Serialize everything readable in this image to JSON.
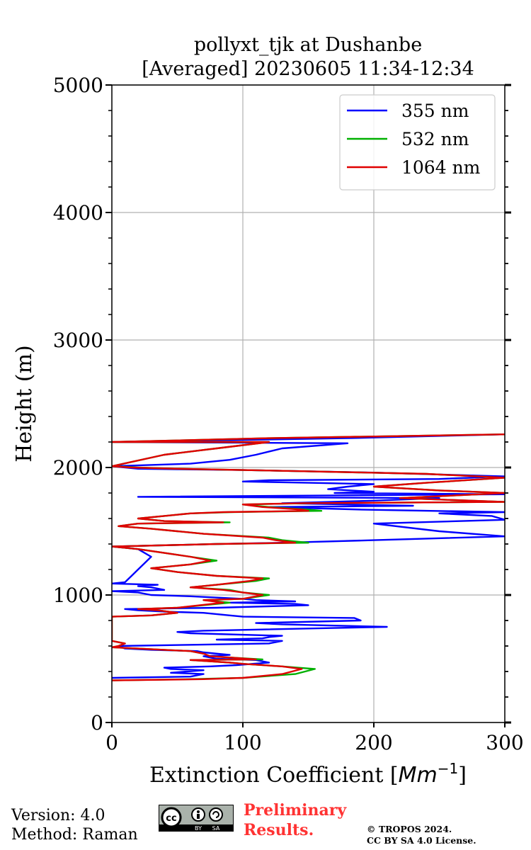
{
  "footer": {
    "version": "Version: 4.0",
    "method": "Method: Raman",
    "preliminary_line1": "Preliminary",
    "preliminary_line2": "Results.",
    "copyright_line1": "© TROPOS 2024.",
    "copyright_line2": "CC BY SA 4.0 License.",
    "license_badge": {
      "cc": "cc",
      "by": "BY",
      "sa": "SA"
    }
  },
  "chart_data": {
    "type": "line",
    "title": [
      "pollyxt_tjk at Dushanbe",
      "[Averaged] 20230605 11:34-12:34"
    ],
    "xlabel": "Extinction Coefficient [",
    "xlabel_unit": "Mm",
    "xlabel_exp": "−1",
    "xlabel_end": "]",
    "ylabel": "Height (m)",
    "xlim": [
      0,
      300
    ],
    "ylim": [
      0,
      5000
    ],
    "xticks": [
      0,
      100,
      200,
      300
    ],
    "xtick_labels": [
      "0",
      "100",
      "200",
      "300"
    ],
    "yticks": [
      0,
      1000,
      2000,
      3000,
      4000,
      5000
    ],
    "ytick_labels": [
      "0",
      "1000",
      "2000",
      "3000",
      "4000",
      "5000"
    ],
    "y_minor_step": 200,
    "grid": true,
    "legend_position": "top-right",
    "series": [
      {
        "name": "355 nm",
        "color": "#0000ff",
        "points": [
          [
            0,
            350
          ],
          [
            60,
            360
          ],
          [
            70,
            380
          ],
          [
            45,
            390
          ],
          [
            70,
            410
          ],
          [
            45,
            420
          ],
          [
            40,
            430
          ],
          [
            75,
            440
          ],
          [
            95,
            450
          ],
          [
            120,
            470
          ],
          [
            110,
            490
          ],
          [
            80,
            500
          ],
          [
            70,
            520
          ],
          [
            90,
            530
          ],
          [
            70,
            550
          ],
          [
            65,
            560
          ],
          [
            30,
            570
          ],
          [
            10,
            580
          ],
          [
            5,
            600
          ],
          [
            65,
            610
          ],
          [
            120,
            620
          ],
          [
            130,
            640
          ],
          [
            80,
            650
          ],
          [
            115,
            660
          ],
          [
            120,
            670
          ],
          [
            130,
            680
          ],
          [
            60,
            700
          ],
          [
            50,
            710
          ],
          [
            70,
            720
          ],
          [
            210,
            750
          ],
          [
            130,
            770
          ],
          [
            110,
            780
          ],
          [
            190,
            800
          ],
          [
            185,
            820
          ],
          [
            100,
            830
          ],
          [
            90,
            840
          ],
          [
            70,
            860
          ],
          [
            40,
            870
          ],
          [
            20,
            880
          ],
          [
            10,
            890
          ],
          [
            80,
            900
          ],
          [
            150,
            920
          ],
          [
            140,
            930
          ],
          [
            90,
            940
          ],
          [
            140,
            950
          ],
          [
            110,
            960
          ],
          [
            100,
            970
          ],
          [
            60,
            990
          ],
          [
            30,
            1000
          ],
          [
            20,
            1020
          ],
          [
            0,
            1030
          ],
          [
            40,
            1040
          ],
          [
            30,
            1060
          ],
          [
            20,
            1070
          ],
          [
            35,
            1080
          ],
          [
            0,
            1090
          ],
          [
            10,
            1100
          ],
          [
            15,
            1150
          ],
          [
            20,
            1200
          ],
          [
            25,
            1250
          ],
          [
            30,
            1300
          ],
          [
            20,
            1360
          ],
          [
            0,
            1380
          ],
          [
            80,
            1400
          ],
          [
            130,
            1410
          ],
          [
            200,
            1430
          ],
          [
            300,
            1460
          ],
          [
            250,
            1500
          ],
          [
            200,
            1560
          ],
          [
            300,
            1590
          ],
          [
            290,
            1620
          ],
          [
            250,
            1640
          ],
          [
            300,
            1650
          ],
          [
            190,
            1670
          ],
          [
            120,
            1690
          ],
          [
            230,
            1700
          ],
          [
            130,
            1720
          ],
          [
            200,
            1740
          ],
          [
            250,
            1760
          ],
          [
            20,
            1770
          ],
          [
            300,
            1790
          ],
          [
            170,
            1800
          ],
          [
            200,
            1810
          ],
          [
            165,
            1830
          ],
          [
            180,
            1850
          ],
          [
            200,
            1870
          ],
          [
            150,
            1880
          ],
          [
            100,
            1890
          ],
          [
            120,
            1900
          ],
          [
            250,
            1910
          ],
          [
            300,
            1930
          ],
          [
            200,
            1960
          ],
          [
            100,
            1980
          ],
          [
            20,
            1990
          ],
          [
            0,
            2010
          ],
          [
            60,
            2030
          ],
          [
            90,
            2060
          ],
          [
            110,
            2100
          ],
          [
            130,
            2150
          ],
          [
            180,
            2190
          ],
          [
            0,
            2200
          ],
          [
            180,
            2230
          ],
          [
            300,
            2260
          ]
        ]
      },
      {
        "name": "532 nm",
        "color": "#00b000",
        "points": [
          [
            0,
            330
          ],
          [
            60,
            340
          ],
          [
            100,
            350
          ],
          [
            140,
            380
          ],
          [
            155,
            420
          ],
          [
            130,
            440
          ],
          [
            100,
            460
          ],
          [
            90,
            470
          ],
          [
            60,
            490
          ],
          [
            115,
            495
          ],
          [
            90,
            510
          ],
          [
            75,
            520
          ],
          [
            70,
            540
          ],
          [
            60,
            560
          ],
          [
            40,
            570
          ],
          [
            20,
            580
          ],
          [
            0,
            590
          ],
          [
            5,
            600
          ],
          [
            10,
            620
          ],
          [
            0,
            640
          ],
          [
            0,
            700
          ],
          [
            0,
            800
          ],
          [
            0,
            830
          ],
          [
            30,
            840
          ],
          [
            50,
            860
          ],
          [
            35,
            880
          ],
          [
            20,
            890
          ],
          [
            50,
            900
          ],
          [
            90,
            940
          ],
          [
            70,
            960
          ],
          [
            100,
            970
          ],
          [
            120,
            1000
          ],
          [
            100,
            1020
          ],
          [
            90,
            1040
          ],
          [
            60,
            1060
          ],
          [
            80,
            1080
          ],
          [
            110,
            1110
          ],
          [
            120,
            1130
          ],
          [
            80,
            1150
          ],
          [
            50,
            1180
          ],
          [
            30,
            1210
          ],
          [
            60,
            1240
          ],
          [
            80,
            1270
          ],
          [
            60,
            1300
          ],
          [
            40,
            1330
          ],
          [
            20,
            1360
          ],
          [
            0,
            1380
          ],
          [
            80,
            1400
          ],
          [
            150,
            1410
          ],
          [
            130,
            1430
          ],
          [
            120,
            1450
          ],
          [
            70,
            1480
          ],
          [
            50,
            1500
          ],
          [
            30,
            1520
          ],
          [
            5,
            1540
          ],
          [
            20,
            1560
          ],
          [
            90,
            1570
          ],
          [
            40,
            1580
          ],
          [
            20,
            1600
          ],
          [
            40,
            1620
          ],
          [
            60,
            1640
          ],
          [
            90,
            1650
          ],
          [
            160,
            1660
          ],
          [
            150,
            1670
          ],
          [
            120,
            1690
          ],
          [
            100,
            1710
          ],
          [
            150,
            1720
          ],
          [
            300,
            1730
          ],
          [
            220,
            1760
          ],
          [
            300,
            1800
          ],
          [
            250,
            1820
          ],
          [
            200,
            1850
          ],
          [
            240,
            1880
          ],
          [
            300,
            1920
          ],
          [
            240,
            1950
          ],
          [
            150,
            1970
          ],
          [
            50,
            1990
          ],
          [
            20,
            2000
          ],
          [
            0,
            2010
          ],
          [
            40,
            2100
          ],
          [
            80,
            2150
          ],
          [
            120,
            2200
          ],
          [
            0,
            2200
          ],
          [
            120,
            2230
          ],
          [
            300,
            2260
          ]
        ]
      },
      {
        "name": "1064 nm",
        "color": "#e00000",
        "points": [
          [
            0,
            330
          ],
          [
            70,
            340
          ],
          [
            100,
            350
          ],
          [
            130,
            380
          ],
          [
            145,
            420
          ],
          [
            130,
            440
          ],
          [
            100,
            460
          ],
          [
            90,
            470
          ],
          [
            60,
            490
          ],
          [
            110,
            495
          ],
          [
            90,
            510
          ],
          [
            75,
            520
          ],
          [
            70,
            540
          ],
          [
            60,
            560
          ],
          [
            40,
            570
          ],
          [
            20,
            580
          ],
          [
            0,
            590
          ],
          [
            5,
            600
          ],
          [
            10,
            620
          ],
          [
            0,
            640
          ],
          [
            0,
            700
          ],
          [
            0,
            800
          ],
          [
            0,
            830
          ],
          [
            30,
            840
          ],
          [
            50,
            860
          ],
          [
            35,
            880
          ],
          [
            20,
            890
          ],
          [
            50,
            900
          ],
          [
            85,
            940
          ],
          [
            70,
            960
          ],
          [
            100,
            970
          ],
          [
            115,
            1000
          ],
          [
            100,
            1020
          ],
          [
            85,
            1040
          ],
          [
            60,
            1060
          ],
          [
            80,
            1080
          ],
          [
            105,
            1110
          ],
          [
            115,
            1130
          ],
          [
            80,
            1150
          ],
          [
            50,
            1180
          ],
          [
            30,
            1210
          ],
          [
            60,
            1240
          ],
          [
            75,
            1270
          ],
          [
            60,
            1300
          ],
          [
            40,
            1330
          ],
          [
            20,
            1360
          ],
          [
            0,
            1380
          ],
          [
            80,
            1400
          ],
          [
            140,
            1410
          ],
          [
            125,
            1430
          ],
          [
            115,
            1450
          ],
          [
            70,
            1480
          ],
          [
            50,
            1500
          ],
          [
            30,
            1520
          ],
          [
            5,
            1540
          ],
          [
            20,
            1560
          ],
          [
            85,
            1570
          ],
          [
            40,
            1580
          ],
          [
            20,
            1600
          ],
          [
            40,
            1620
          ],
          [
            60,
            1640
          ],
          [
            85,
            1650
          ],
          [
            150,
            1660
          ],
          [
            145,
            1670
          ],
          [
            115,
            1690
          ],
          [
            100,
            1710
          ],
          [
            145,
            1720
          ],
          [
            300,
            1730
          ],
          [
            220,
            1760
          ],
          [
            300,
            1800
          ],
          [
            250,
            1820
          ],
          [
            200,
            1850
          ],
          [
            240,
            1880
          ],
          [
            300,
            1920
          ],
          [
            240,
            1950
          ],
          [
            150,
            1970
          ],
          [
            50,
            1990
          ],
          [
            15,
            2000
          ],
          [
            0,
            2010
          ],
          [
            40,
            2100
          ],
          [
            80,
            2150
          ],
          [
            120,
            2200
          ],
          [
            0,
            2200
          ],
          [
            120,
            2230
          ],
          [
            300,
            2260
          ]
        ]
      }
    ]
  }
}
